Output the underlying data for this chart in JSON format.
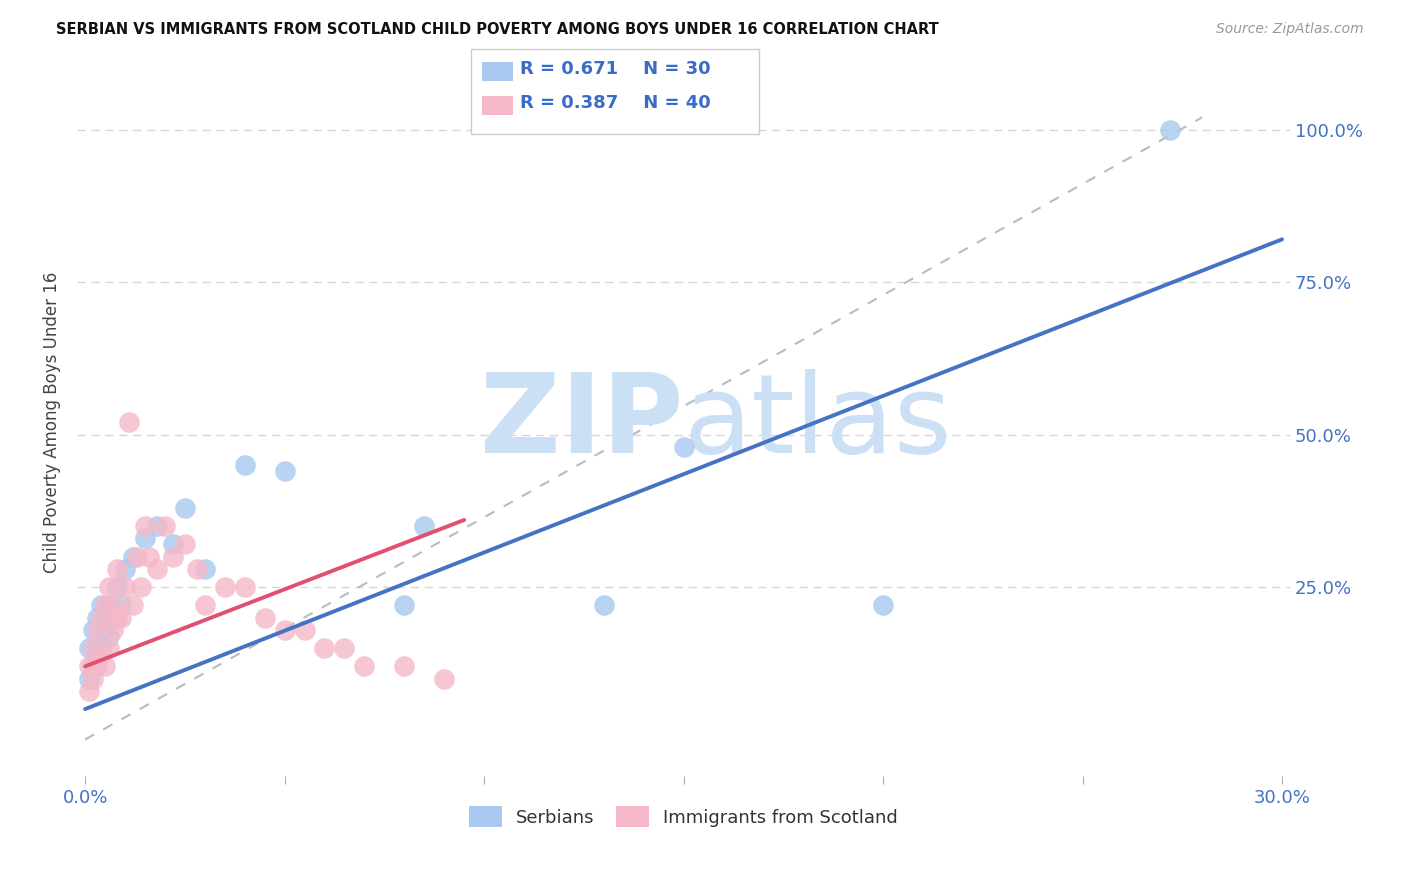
{
  "title": "SERBIAN VS IMMIGRANTS FROM SCOTLAND CHILD POVERTY AMONG BOYS UNDER 16 CORRELATION CHART",
  "source": "Source: ZipAtlas.com",
  "ylabel": "Child Poverty Among Boys Under 16",
  "xlim_min": -0.002,
  "xlim_max": 0.302,
  "ylim_min": -0.06,
  "ylim_max": 1.1,
  "xtick_positions": [
    0.0,
    0.05,
    0.1,
    0.15,
    0.2,
    0.25,
    0.3
  ],
  "xtick_labels": [
    "0.0%",
    "",
    "",
    "",
    "",
    "",
    "30.0%"
  ],
  "ytick_positions": [
    0.0,
    0.25,
    0.5,
    0.75,
    1.0
  ],
  "ytick_labels": [
    "",
    "25.0%",
    "50.0%",
    "75.0%",
    "100.0%"
  ],
  "tick_color": "#4472c4",
  "grid_color": "#cccccc",
  "background_color": "#ffffff",
  "watermark_zip": "ZIP",
  "watermark_atlas": "atlas",
  "watermark_color": "#cce0f5",
  "legend_r1": "R = 0.671",
  "legend_n1": "N = 30",
  "legend_r2": "R = 0.387",
  "legend_n2": "N = 40",
  "serbian_color": "#a8c8f0",
  "scottish_color": "#f5b8c8",
  "serbian_line_color": "#4472c4",
  "scottish_line_color": "#e05070",
  "ref_line_color": "#bbbbbb",
  "blue_line_x0": 0.0,
  "blue_line_y0": 0.05,
  "blue_line_x1": 0.3,
  "blue_line_y1": 0.82,
  "pink_line_x0": 0.0,
  "pink_line_y0": 0.12,
  "pink_line_x1": 0.095,
  "pink_line_y1": 0.36,
  "ref_line_x0": 0.0,
  "ref_line_y0": 0.0,
  "ref_line_x1": 0.28,
  "ref_line_y1": 1.02,
  "serbian_x": [
    0.001,
    0.001,
    0.002,
    0.002,
    0.003,
    0.003,
    0.004,
    0.004,
    0.005,
    0.005,
    0.006,
    0.006,
    0.007,
    0.008,
    0.009,
    0.01,
    0.012,
    0.015,
    0.018,
    0.022,
    0.025,
    0.03,
    0.04,
    0.05,
    0.08,
    0.085,
    0.13,
    0.15,
    0.2,
    0.272
  ],
  "serbian_y": [
    0.1,
    0.15,
    0.12,
    0.18,
    0.14,
    0.2,
    0.15,
    0.22,
    0.18,
    0.2,
    0.17,
    0.22,
    0.2,
    0.25,
    0.22,
    0.28,
    0.3,
    0.33,
    0.35,
    0.32,
    0.38,
    0.28,
    0.45,
    0.44,
    0.22,
    0.35,
    0.22,
    0.48,
    0.22,
    1.0
  ],
  "scottish_x": [
    0.001,
    0.001,
    0.002,
    0.002,
    0.003,
    0.003,
    0.004,
    0.004,
    0.005,
    0.005,
    0.006,
    0.006,
    0.007,
    0.007,
    0.008,
    0.008,
    0.009,
    0.01,
    0.011,
    0.012,
    0.013,
    0.014,
    0.015,
    0.016,
    0.018,
    0.02,
    0.022,
    0.025,
    0.028,
    0.03,
    0.035,
    0.04,
    0.045,
    0.05,
    0.055,
    0.06,
    0.065,
    0.07,
    0.08,
    0.09
  ],
  "scottish_y": [
    0.08,
    0.12,
    0.1,
    0.15,
    0.12,
    0.18,
    0.14,
    0.2,
    0.12,
    0.22,
    0.15,
    0.25,
    0.18,
    0.22,
    0.2,
    0.28,
    0.2,
    0.25,
    0.52,
    0.22,
    0.3,
    0.25,
    0.35,
    0.3,
    0.28,
    0.35,
    0.3,
    0.32,
    0.28,
    0.22,
    0.25,
    0.25,
    0.2,
    0.18,
    0.18,
    0.15,
    0.15,
    0.12,
    0.12,
    0.1
  ]
}
